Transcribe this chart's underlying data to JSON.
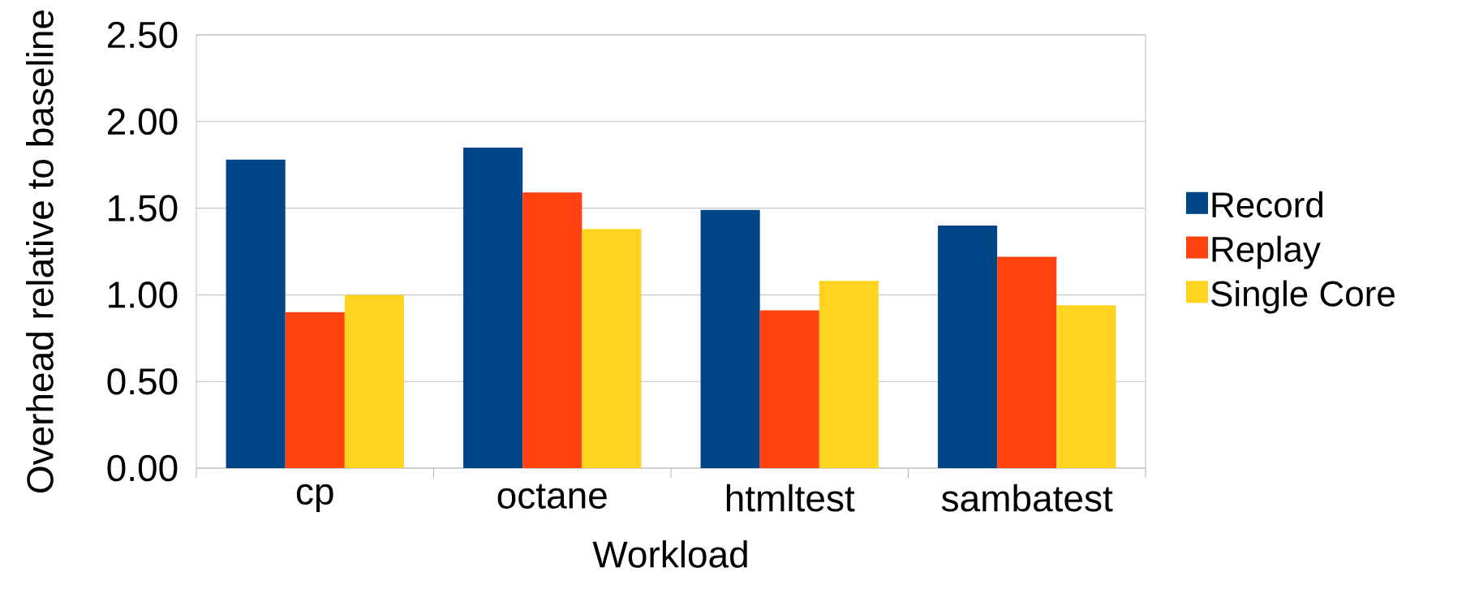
{
  "chart_data": {
    "type": "bar",
    "xlabel": "Workload",
    "ylabel": "Overhead relative to baseline",
    "categories": [
      "cp",
      "octane",
      "htmltest",
      "sambatest"
    ],
    "series": [
      {
        "name": "Record",
        "color": "#004586",
        "values": [
          1.78,
          1.85,
          1.49,
          1.4
        ]
      },
      {
        "name": "Replay",
        "color": "#ff420e",
        "values": [
          0.9,
          1.59,
          0.91,
          1.22
        ]
      },
      {
        "name": "Single Core",
        "color": "#ffd320",
        "values": [
          1.0,
          1.38,
          1.08,
          0.94
        ]
      }
    ],
    "ylim": [
      0,
      2.5
    ],
    "yticks": [
      {
        "value": 0,
        "label": "0.00"
      },
      {
        "value": 0.5,
        "label": "0.50"
      },
      {
        "value": 1,
        "label": "1.00"
      },
      {
        "value": 1.5,
        "label": "1.50"
      },
      {
        "value": 2,
        "label": "2.00"
      },
      {
        "value": 2.5,
        "label": "2.50"
      }
    ],
    "grid": "y",
    "legend": "right"
  }
}
